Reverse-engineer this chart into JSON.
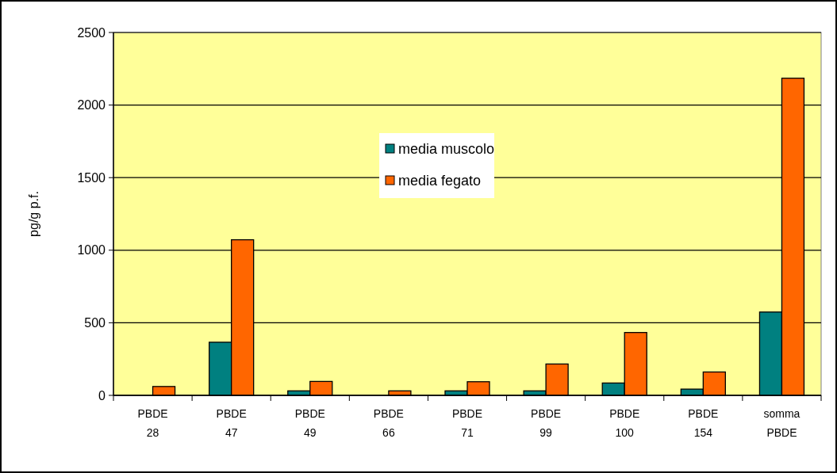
{
  "chart_data": {
    "type": "bar",
    "ylabel": "pg/g p.f.",
    "categories": [
      "PBDE 28",
      "PBDE 47",
      "PBDE 49",
      "PBDE 66",
      "PBDE 71",
      "PBDE 99",
      "PBDE 100",
      "PBDE 154",
      "somma PBDE"
    ],
    "series": [
      {
        "name": "media muscolo",
        "color": "#008080",
        "values": [
          0,
          366,
          31,
          0,
          31,
          31,
          85,
          43,
          574
        ]
      },
      {
        "name": "media fegato",
        "color": "#ff6600",
        "values": [
          61,
          1072,
          96,
          31,
          94,
          216,
          433,
          161,
          2185
        ]
      }
    ],
    "ylim": [
      0,
      2500
    ],
    "yticks": [
      0,
      500,
      1000,
      1500,
      2000,
      2500
    ],
    "grid": "y",
    "legend": "top"
  }
}
